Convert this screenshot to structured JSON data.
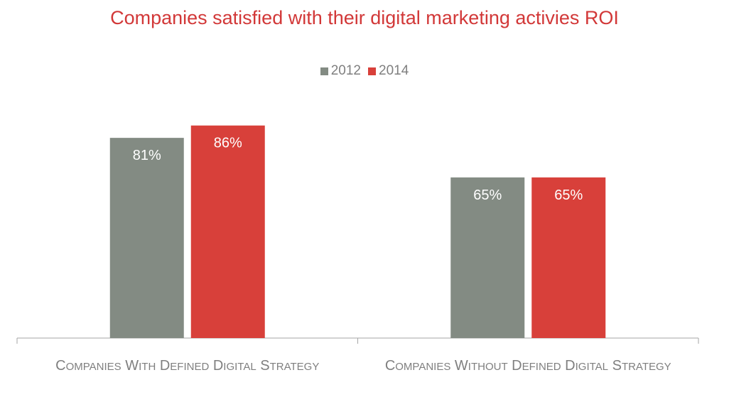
{
  "chart_data": {
    "type": "bar",
    "title": "Companies satisfied with their digital marketing activies ROI",
    "categories": [
      "Companies with defined digital strategy",
      "Companies without defined digital strategy"
    ],
    "series": [
      {
        "name": "2012",
        "values": [
          81,
          65
        ],
        "labels": [
          "81%",
          "65%"
        ],
        "color": "#838b83"
      },
      {
        "name": "2014",
        "values": [
          86,
          65
        ],
        "labels": [
          "86%",
          "65%"
        ],
        "color": "#d8403a"
      }
    ],
    "ylim": [
      0,
      100
    ],
    "grid": false,
    "legend": "top-center",
    "title_color": "#d23838",
    "text_color": "#7f7f7f",
    "axis_color": "#a6a6a6"
  }
}
